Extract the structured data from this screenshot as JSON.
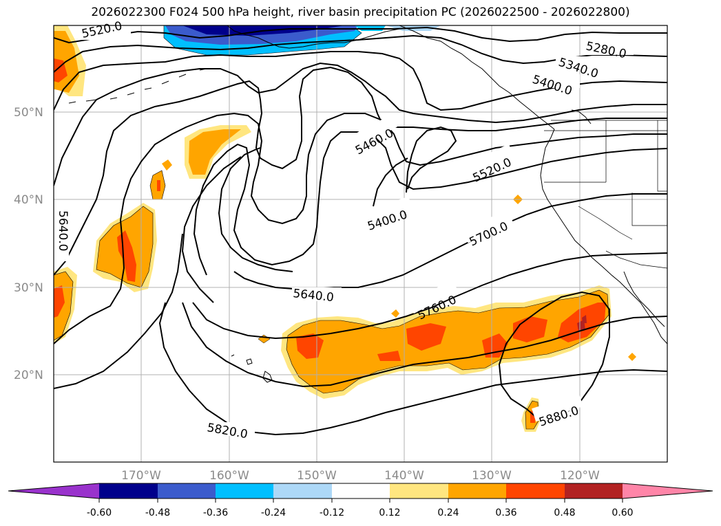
{
  "title": "2026022300 F024 500 hPa height, river basin precipitation PC (2026022500 - 2026022800)",
  "map": {
    "lat_labels": [
      "50°N",
      "40°N",
      "30°N",
      "20°N"
    ],
    "lon_labels": [
      "170°W",
      "160°W",
      "150°W",
      "140°W",
      "130°W",
      "120°W"
    ],
    "contour_labels": [
      "5520.0",
      "5280.0",
      "5340.0",
      "5400.0",
      "5460.0",
      "5520.0",
      "5400.0",
      "5640.0",
      "5700.0",
      "5640.0",
      "5760.0",
      "5820.0",
      "5880.0"
    ]
  },
  "colorbar": {
    "tick_labels": [
      "-0.60",
      "-0.48",
      "-0.36",
      "-0.24",
      "-0.12",
      "0.12",
      "0.24",
      "0.36",
      "0.48",
      "0.60"
    ],
    "colors": [
      "#9932cc",
      "#00008b",
      "#3b5bcc",
      "#00bfff",
      "#add8f7",
      "#ffffff",
      "#ffe680",
      "#ffa500",
      "#ff4500",
      "#b22222",
      "#ff85a8"
    ]
  }
}
